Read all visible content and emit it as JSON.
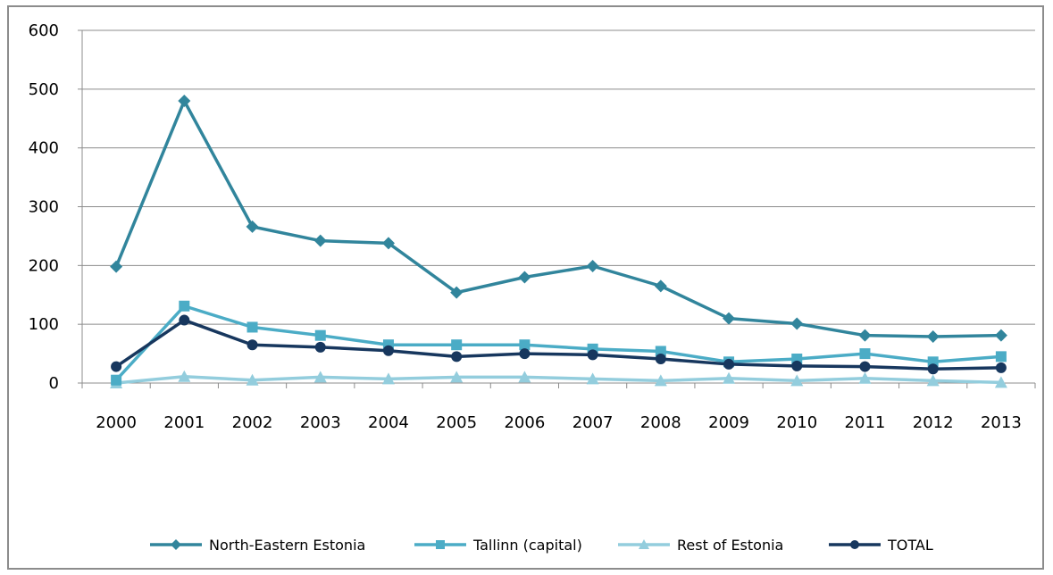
{
  "chart_data": {
    "type": "line",
    "title": "",
    "xlabel": "",
    "ylabel": "",
    "ylim": [
      0,
      600
    ],
    "yticks": [
      0,
      100,
      200,
      300,
      400,
      500,
      600
    ],
    "grid": "horizontal",
    "legend_position": "bottom",
    "categories": [
      "2000",
      "2001",
      "2002",
      "2003",
      "2004",
      "2005",
      "2006",
      "2007",
      "2008",
      "2009",
      "2010",
      "2011",
      "2012",
      "2013"
    ],
    "series": [
      {
        "name": "North-Eastern Estonia",
        "color": "#31859c",
        "marker": "diamond",
        "values": [
          198,
          480,
          266,
          242,
          238,
          154,
          180,
          199,
          165,
          110,
          101,
          81,
          79,
          81
        ]
      },
      {
        "name": "Tallinn (capital)",
        "color": "#4bacc6",
        "marker": "square",
        "values": [
          5,
          131,
          95,
          81,
          65,
          65,
          65,
          58,
          54,
          36,
          41,
          50,
          36,
          45
        ]
      },
      {
        "name": "Rest of Estonia",
        "color": "#93cddd",
        "marker": "triangle",
        "values": [
          0,
          11,
          5,
          10,
          7,
          10,
          10,
          7,
          4,
          8,
          4,
          8,
          4,
          1
        ]
      },
      {
        "name": "TOTAL",
        "color": "#17375e",
        "marker": "circle",
        "values": [
          28,
          107,
          65,
          61,
          55,
          45,
          50,
          48,
          41,
          32,
          29,
          28,
          24,
          26
        ]
      }
    ]
  }
}
